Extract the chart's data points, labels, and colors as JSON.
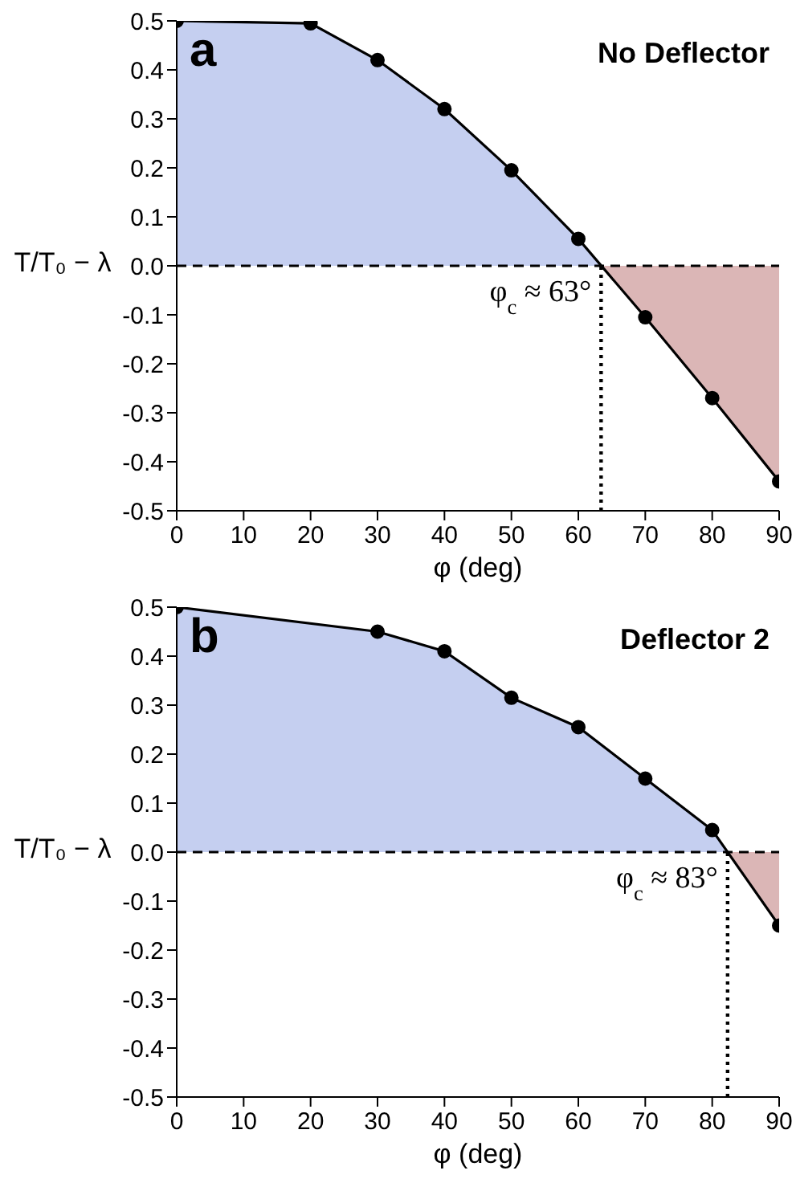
{
  "chart_data": [
    {
      "type": "area",
      "title": "No Deflector",
      "annotations": [
        "a"
      ],
      "xlabel": "φ (deg)",
      "ylabel": "T/T₀ − λ",
      "x": [
        0,
        20,
        30,
        40,
        50,
        60,
        70,
        80,
        90
      ],
      "series": [
        {
          "color": "#000000",
          "colors": [
            "#c5cff0",
            "#c5cff0",
            "#c5cff0",
            "#c5cff0",
            "#c5cff0",
            "#c5cff0",
            "#dbb6b6",
            "#dbb6b6",
            "#dbb6b6"
          ],
          "values": [
            0.5,
            0.495,
            0.42,
            0.32,
            0.195,
            0.055,
            -0.105,
            -0.27,
            -0.44
          ]
        }
      ],
      "xlim": [
        0,
        90
      ],
      "xticks": [
        0,
        10,
        20,
        30,
        40,
        50,
        60,
        70,
        80,
        90
      ],
      "ylim": [
        -0.5,
        0.5
      ],
      "yticks": [
        -0.5,
        -0.4,
        -0.3,
        -0.2,
        -0.1,
        {
          "value": 0,
          "label": "0.0"
        },
        0.1,
        0.2,
        0.3,
        0.4,
        0.5
      ],
      "ref_lines": [
        {
          "axis": "y",
          "value": 0,
          "line_style": "dashed"
        },
        {
          "axis": "x",
          "value": 63.4,
          "label": "φ$_{c}$ ≈ 63°",
          "line_style": "dotted"
        }
      ],
      "marker": "circle",
      "legend": false,
      "grid": false
    },
    {
      "type": "area",
      "title": "Deflector 2",
      "annotations": [
        "b"
      ],
      "xlabel": "φ (deg)",
      "ylabel": "T/T₀ − λ",
      "x": [
        0,
        30,
        40,
        50,
        60,
        70,
        80,
        90
      ],
      "series": [
        {
          "color": "#000000",
          "colors": [
            "#c5cff0",
            "#c5cff0",
            "#c5cff0",
            "#c5cff0",
            "#c5cff0",
            "#c5cff0",
            "#c5cff0",
            "#dbb6b6"
          ],
          "values": [
            0.5,
            0.45,
            0.41,
            0.315,
            0.255,
            0.15,
            0.045,
            -0.15
          ]
        }
      ],
      "xlim": [
        0,
        90
      ],
      "xticks": [
        0,
        10,
        20,
        30,
        40,
        50,
        60,
        70,
        80,
        90
      ],
      "ylim": [
        -0.5,
        0.5
      ],
      "yticks": [
        -0.5,
        -0.4,
        -0.3,
        -0.2,
        -0.1,
        {
          "value": 0,
          "label": "0.0"
        },
        0.1,
        0.2,
        0.3,
        0.4,
        0.5
      ],
      "ref_lines": [
        {
          "axis": "y",
          "value": 0,
          "line_style": "dashed"
        },
        {
          "axis": "x",
          "value": 82.3,
          "label": "φ$_{c}$ ≈ 83°",
          "line_style": "dotted"
        }
      ],
      "marker": "circle",
      "legend": false,
      "grid": false
    }
  ]
}
